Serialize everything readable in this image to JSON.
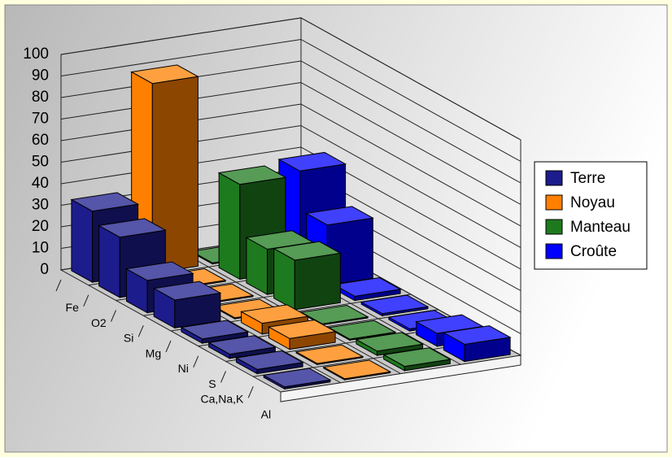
{
  "chart_data": {
    "type": "bar3d",
    "categories": [
      "Fe",
      "O2",
      "Si",
      "Mg",
      "Ni",
      "S",
      "Ca,Na,K",
      "Al"
    ],
    "series": [
      {
        "name": "Terre",
        "color": "#1c1c8c",
        "values": [
          33,
          28,
          15,
          13,
          2,
          2,
          2,
          1
        ]
      },
      {
        "name": "Noyau",
        "color": "#ff8000",
        "values": [
          88,
          0.5,
          0.5,
          0.5,
          5,
          5,
          0.5,
          0.5
        ]
      },
      {
        "name": "Manteau",
        "color": "#1e7a1e",
        "values": [
          0.5,
          44,
          21,
          23,
          0.5,
          0.5,
          2,
          2
        ]
      },
      {
        "name": "Croûte",
        "color": "#0000ff",
        "values": [
          5,
          46,
          28,
          2,
          1,
          1,
          6,
          8
        ]
      }
    ],
    "ylim": [
      0,
      100
    ],
    "yticks": [
      0,
      10,
      20,
      30,
      40,
      50,
      60,
      70,
      80,
      90,
      100
    ],
    "grid": true
  }
}
